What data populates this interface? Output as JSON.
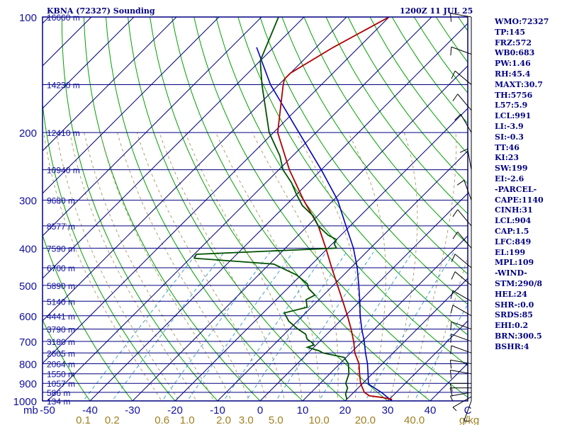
{
  "header": {
    "station": "KBNA (72327) Sounding",
    "time": "1200Z 11 JUL 25"
  },
  "stats": [
    "WMO:72327",
    "TP:145",
    "FRZ:572",
    "WB0:683",
    "PW:1.46",
    "RH:45.4",
    "MAXT:30.7",
    "TH:5756",
    "L57:5.9",
    "LCL:991",
    "LI:-3.9",
    "SI:-0.3",
    "TT:46",
    "KI:23",
    "SW:199",
    "EI:-2.6",
    "-PARCEL-",
    "CAPE:1140",
    "CINH:31",
    "LCL:904",
    "CAP:1.5",
    "LFC:849",
    "EL:199",
    "MPL:109",
    "-WIND-",
    "STM:290/8",
    "HEL:24",
    "SHR-:0.0",
    "SRDS:85",
    "EHI:0.2",
    "BRN:300.5",
    "BSHR:4"
  ],
  "colors": {
    "frame": "#000080",
    "temperature": "#b00000",
    "dewpoint": "#005000",
    "parcel": "#0000c0",
    "dry_adiabat": "#00a000",
    "moist_adiabat": "#b0a070",
    "mixing_ratio": "#40a0d0",
    "axis_label": "#1010a0",
    "mixing_label": "#a08020"
  },
  "chart_data": {
    "type": "skew-t log-p",
    "pressure_axis_label": "mb",
    "pressure_ticks": [
      100,
      200,
      300,
      400,
      500,
      600,
      700,
      800,
      900,
      1000
    ],
    "temperature_ticks": [
      "-50",
      "-40",
      "-30",
      "-20",
      "-10",
      "0",
      "10",
      "20",
      "30",
      "40",
      "C"
    ],
    "temperature_tick_values": [
      -50,
      -40,
      -30,
      -20,
      -10,
      0,
      10,
      20,
      30,
      40
    ],
    "mixing_ratio_labels": [
      "0.1",
      "0.2",
      "0.6",
      "1.0",
      "2.0",
      "3.0",
      "5.0",
      "10.0",
      "20.0",
      "40.0",
      "g/kg"
    ],
    "mixing_ratio_values": [
      0.1,
      0.2,
      0.6,
      1.0,
      2.0,
      3.0,
      5.0,
      10.0,
      20.0,
      40.0
    ],
    "heights": [
      {
        "p": 100,
        "label": "16660 m"
      },
      {
        "p": 150,
        "label": "14230 m"
      },
      {
        "p": 200,
        "label": "12410 m"
      },
      {
        "p": 250,
        "label": "10940 m"
      },
      {
        "p": 300,
        "label": "9680 m"
      },
      {
        "p": 350,
        "label": "8577 m"
      },
      {
        "p": 400,
        "label": "7590 m"
      },
      {
        "p": 450,
        "label": "6700 m"
      },
      {
        "p": 500,
        "label": "5890 m"
      },
      {
        "p": 550,
        "label": "5140 m"
      },
      {
        "p": 600,
        "label": "4441 m"
      },
      {
        "p": 650,
        "label": "3790 m"
      },
      {
        "p": 700,
        "label": "3180 m"
      },
      {
        "p": 750,
        "label": "2605 m"
      },
      {
        "p": 800,
        "label": "2064 m"
      },
      {
        "p": 850,
        "label": "1550 m"
      },
      {
        "p": 900,
        "label": "1057 m"
      },
      {
        "p": 950,
        "label": "586 m"
      },
      {
        "p": 1000,
        "label": "134 m"
      }
    ],
    "temperature": [
      {
        "p": 991,
        "t": 30.7
      },
      {
        "p": 980,
        "t": 28
      },
      {
        "p": 970,
        "t": 24.5
      },
      {
        "p": 950,
        "t": 22.5
      },
      {
        "p": 925,
        "t": 21
      },
      {
        "p": 900,
        "t": 19.5
      },
      {
        "p": 850,
        "t": 17
      },
      {
        "p": 800,
        "t": 14.5
      },
      {
        "p": 750,
        "t": 11
      },
      {
        "p": 700,
        "t": 8
      },
      {
        "p": 650,
        "t": 4.5
      },
      {
        "p": 600,
        "t": 0.5
      },
      {
        "p": 550,
        "t": -4
      },
      {
        "p": 500,
        "t": -9
      },
      {
        "p": 450,
        "t": -14.5
      },
      {
        "p": 400,
        "t": -20.5
      },
      {
        "p": 350,
        "t": -27.5
      },
      {
        "p": 300,
        "t": -37
      },
      {
        "p": 250,
        "t": -47.5
      },
      {
        "p": 200,
        "t": -59
      },
      {
        "p": 150,
        "t": -69
      },
      {
        "p": 145,
        "t": -70
      },
      {
        "p": 140,
        "t": -70
      },
      {
        "p": 120,
        "t": -66
      },
      {
        "p": 100,
        "t": -60
      }
    ],
    "dewpoint": [
      {
        "p": 991,
        "t": 20
      },
      {
        "p": 980,
        "t": 19.5
      },
      {
        "p": 960,
        "t": 18.5
      },
      {
        "p": 925,
        "t": 17.5
      },
      {
        "p": 900,
        "t": 16
      },
      {
        "p": 850,
        "t": 14.5
      },
      {
        "p": 800,
        "t": 12
      },
      {
        "p": 770,
        "t": 9.5
      },
      {
        "p": 750,
        "t": 3.5
      },
      {
        "p": 740,
        "t": 2
      },
      {
        "p": 725,
        "t": -1.5
      },
      {
        "p": 715,
        "t": -0.5
      },
      {
        "p": 705,
        "t": -1.5
      },
      {
        "p": 690,
        "t": -3.5
      },
      {
        "p": 670,
        "t": -5
      },
      {
        "p": 650,
        "t": -8
      },
      {
        "p": 620,
        "t": -12
      },
      {
        "p": 590,
        "t": -15
      },
      {
        "p": 570,
        "t": -11
      },
      {
        "p": 545,
        "t": -13
      },
      {
        "p": 530,
        "t": -12
      },
      {
        "p": 510,
        "t": -15
      },
      {
        "p": 495,
        "t": -16.5
      },
      {
        "p": 470,
        "t": -21
      },
      {
        "p": 455,
        "t": -25
      },
      {
        "p": 440,
        "t": -29
      },
      {
        "p": 425,
        "t": -49
      },
      {
        "p": 415,
        "t": -49.5
      },
      {
        "p": 400,
        "t": -18
      },
      {
        "p": 390,
        "t": -19.5
      },
      {
        "p": 380,
        "t": -20
      },
      {
        "p": 370,
        "t": -23
      },
      {
        "p": 350,
        "t": -27.5
      },
      {
        "p": 330,
        "t": -31
      },
      {
        "p": 310,
        "t": -36
      },
      {
        "p": 290,
        "t": -40
      },
      {
        "p": 270,
        "t": -44
      },
      {
        "p": 250,
        "t": -49
      },
      {
        "p": 230,
        "t": -53
      },
      {
        "p": 200,
        "t": -61
      },
      {
        "p": 150,
        "t": -74
      },
      {
        "p": 130,
        "t": -80
      },
      {
        "p": 100,
        "t": -86
      }
    ],
    "parcel": [
      {
        "p": 1000,
        "t": 31
      },
      {
        "p": 950,
        "t": 26.5
      },
      {
        "p": 904,
        "t": 21.5
      },
      {
        "p": 850,
        "t": 19
      },
      {
        "p": 800,
        "t": 16.5
      },
      {
        "p": 750,
        "t": 13.5
      },
      {
        "p": 700,
        "t": 10.5
      },
      {
        "p": 650,
        "t": 7
      },
      {
        "p": 600,
        "t": 3.5
      },
      {
        "p": 550,
        "t": 0
      },
      {
        "p": 500,
        "t": -4
      },
      {
        "p": 450,
        "t": -8.5
      },
      {
        "p": 400,
        "t": -14
      },
      {
        "p": 350,
        "t": -21
      },
      {
        "p": 300,
        "t": -29
      },
      {
        "p": 250,
        "t": -40
      },
      {
        "p": 200,
        "t": -54
      },
      {
        "p": 150,
        "t": -72
      },
      {
        "p": 120,
        "t": -84
      }
    ],
    "wind_barbs": [
      {
        "p": 1000,
        "dir": 200,
        "spd": 5
      },
      {
        "p": 975,
        "dir": 240,
        "spd": 5
      },
      {
        "p": 950,
        "dir": 260,
        "spd": 5
      },
      {
        "p": 925,
        "dir": 270,
        "spd": 10
      },
      {
        "p": 900,
        "dir": 270,
        "spd": 10
      },
      {
        "p": 850,
        "dir": 280,
        "spd": 10
      },
      {
        "p": 800,
        "dir": 280,
        "spd": 10
      },
      {
        "p": 750,
        "dir": 290,
        "spd": 10
      },
      {
        "p": 700,
        "dir": 290,
        "spd": 10
      },
      {
        "p": 650,
        "dir": 290,
        "spd": 10
      },
      {
        "p": 600,
        "dir": 300,
        "spd": 10
      },
      {
        "p": 550,
        "dir": 300,
        "spd": 10
      },
      {
        "p": 500,
        "dir": 310,
        "spd": 10
      },
      {
        "p": 450,
        "dir": 310,
        "spd": 10
      },
      {
        "p": 400,
        "dir": 320,
        "spd": 10
      },
      {
        "p": 350,
        "dir": 320,
        "spd": 10
      },
      {
        "p": 300,
        "dir": 340,
        "spd": 10
      },
      {
        "p": 250,
        "dir": 350,
        "spd": 10
      },
      {
        "p": 200,
        "dir": 330,
        "spd": 10
      },
      {
        "p": 175,
        "dir": 320,
        "spd": 10
      },
      {
        "p": 150,
        "dir": 310,
        "spd": 10
      },
      {
        "p": 125,
        "dir": 290,
        "spd": 10
      },
      {
        "p": 100,
        "dir": 280,
        "spd": 10
      }
    ]
  }
}
